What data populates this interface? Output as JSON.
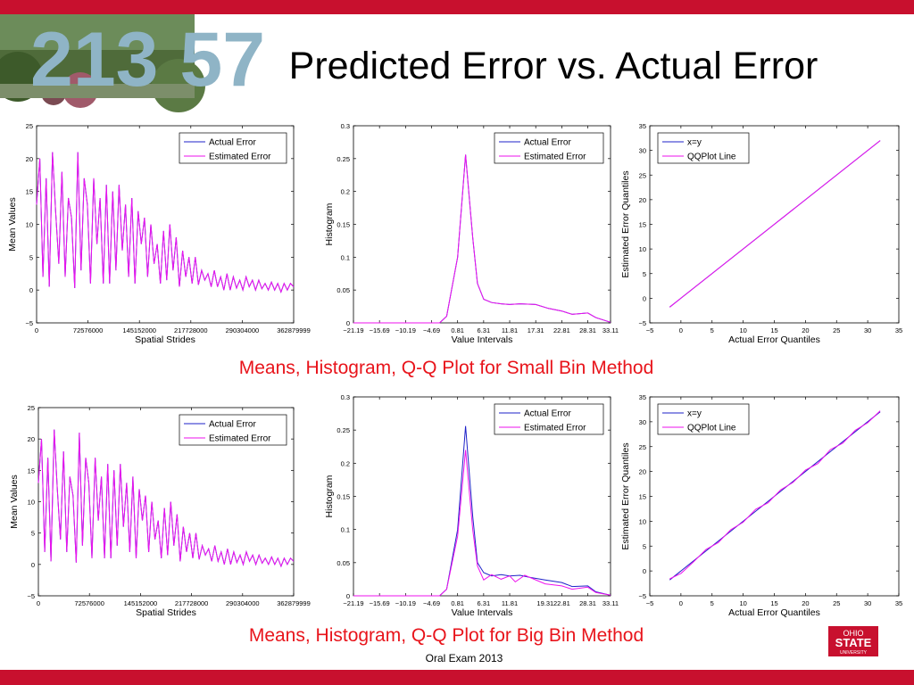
{
  "slide": {
    "title": "Predicted Error vs. Actual Error",
    "caption_small": "Means, Histogram, Q-Q Plot for Small Bin Method",
    "caption_big": "Means, Histogram, Q-Q Plot for Big Bin Method",
    "footer": "Oral Exam 2013",
    "photo_numbers": "213 57",
    "logo_text": [
      "OHIO",
      "STATE",
      "UNIVERSITY"
    ]
  },
  "colors": {
    "bar": "#c8102e",
    "caption": "#e8141b",
    "actual": "#1e22c8",
    "estimated": "#ee12ee"
  },
  "chart_data": [
    {
      "type": "line",
      "panel": "small-means",
      "xlabel": "Spatial Strides",
      "ylabel": "Mean Values",
      "xlim": [
        0,
        362879999
      ],
      "ylim": [
        -5,
        25
      ],
      "xticks": [
        0,
        72576000,
        145152000,
        217728000,
        290304000,
        362879999
      ],
      "xtick_labels": [
        "0",
        "72576000",
        "145152000",
        "217728000",
        "290304000",
        "362879999"
      ],
      "yticks": [
        -5,
        0,
        5,
        10,
        15,
        20,
        25
      ],
      "legend": "top-right",
      "series": [
        {
          "name": "Actual Error",
          "values": [
            13,
            20,
            2,
            17,
            0.5,
            21,
            12,
            4,
            18,
            2,
            14,
            11,
            0.3,
            21,
            3,
            17,
            13,
            1,
            17,
            7,
            14,
            1,
            16,
            1,
            15,
            3,
            16,
            6,
            13,
            2,
            14,
            1,
            12,
            7,
            11,
            2,
            10,
            4,
            7,
            1,
            9,
            1.5,
            10,
            3,
            8,
            0.5,
            6,
            2,
            5,
            1,
            5,
            0.8,
            3,
            1.5,
            2.5,
            0.5,
            3,
            0.5,
            2,
            0,
            2.5,
            0,
            2,
            0.3,
            1.5,
            0,
            2,
            0.5,
            1.5,
            0,
            1.5,
            0.2,
            1,
            0,
            1.2,
            0,
            1,
            -0.3,
            1,
            0,
            1,
            0.5
          ]
        },
        {
          "name": "Estimated Error",
          "values": [
            13,
            20,
            2,
            17,
            0.5,
            21,
            12,
            4,
            18,
            2,
            14,
            11,
            0.3,
            21,
            3,
            17,
            13,
            1,
            17,
            7,
            14,
            1,
            16,
            1,
            15,
            3,
            16,
            6,
            13,
            2,
            14,
            1,
            12,
            7,
            11,
            2,
            10,
            4,
            7,
            1,
            9,
            1.5,
            10,
            3,
            8,
            0.5,
            6,
            2,
            5,
            1,
            5,
            0.8,
            3,
            1.5,
            2.5,
            0.5,
            3,
            0.5,
            2,
            0,
            2.5,
            0,
            2,
            0.3,
            1.5,
            0,
            2,
            0.5,
            1.5,
            0,
            1.5,
            0.2,
            1,
            0,
            1.2,
            0,
            1,
            -0.3,
            1,
            0,
            1,
            0.5
          ]
        }
      ]
    },
    {
      "type": "line",
      "panel": "small-hist",
      "xlabel": "Value Intervals",
      "ylabel": "Histogram",
      "xlim": [
        -21.19,
        33.11
      ],
      "ylim": [
        0,
        0.3
      ],
      "xticks": [
        -21.19,
        -15.69,
        -10.19,
        -4.69,
        0.81,
        6.31,
        11.81,
        17.31,
        22.81,
        28.31,
        33.11
      ],
      "xtick_labels": [
        "−21.19",
        "−15.69",
        "−10.19",
        "−4.69",
        "0.81",
        "6.31",
        "11.81",
        "17.31",
        "22.81",
        "28.31",
        "33.11"
      ],
      "yticks": [
        0,
        0.05,
        0.1,
        0.15,
        0.2,
        0.25,
        0.3
      ],
      "legend": "top-right",
      "series": [
        {
          "name": "Actual Error",
          "x": [
            -21.19,
            -3,
            -1.5,
            0.81,
            2.5,
            4,
            5,
            6.31,
            8,
            10,
            11.81,
            14,
            17.31,
            20,
            22.81,
            25,
            28.31,
            30,
            33.11
          ],
          "values": [
            0,
            0,
            0.01,
            0.1,
            0.256,
            0.13,
            0.06,
            0.036,
            0.031,
            0.029,
            0.028,
            0.029,
            0.028,
            0.022,
            0.018,
            0.013,
            0.015,
            0.008,
            0.001
          ]
        },
        {
          "name": "Estimated Error",
          "x": [
            -21.19,
            -3,
            -1.5,
            0.81,
            2.5,
            4,
            5,
            6.31,
            8,
            10,
            11.81,
            14,
            17.31,
            20,
            22.81,
            25,
            28.31,
            30,
            33.11
          ],
          "values": [
            0,
            0,
            0.01,
            0.1,
            0.256,
            0.13,
            0.06,
            0.036,
            0.031,
            0.029,
            0.028,
            0.029,
            0.028,
            0.022,
            0.018,
            0.013,
            0.015,
            0.008,
            0.001
          ]
        }
      ]
    },
    {
      "type": "line",
      "panel": "small-qq",
      "xlabel": "Actual Error Quantiles",
      "ylabel": "Estimated Error Quantiles",
      "xlim": [
        -5,
        35
      ],
      "ylim": [
        -5,
        35
      ],
      "xticks": [
        -5,
        0,
        5,
        10,
        15,
        20,
        25,
        30,
        35
      ],
      "yticks": [
        -5,
        0,
        5,
        10,
        15,
        20,
        25,
        30,
        35
      ],
      "legend": "top-left",
      "series": [
        {
          "name": "x=y",
          "x": [
            -1.8,
            32
          ],
          "values": [
            -1.8,
            32
          ]
        },
        {
          "name": "QQPlot Line",
          "x": [
            -1.8,
            32
          ],
          "values": [
            -1.8,
            32
          ]
        }
      ]
    },
    {
      "type": "line",
      "panel": "big-means",
      "xlabel": "Spatial Strides",
      "ylabel": "Mean Values",
      "xlim": [
        0,
        362879999
      ],
      "ylim": [
        -5,
        25
      ],
      "xticks": [
        0,
        72576000,
        145152000,
        217728000,
        290304000,
        362879999
      ],
      "xtick_labels": [
        "0",
        "72576000",
        "145152000",
        "217728000",
        "290304000",
        "362879999"
      ],
      "yticks": [
        -5,
        0,
        5,
        10,
        15,
        20,
        25
      ],
      "legend": "top-right",
      "series": [
        {
          "name": "Actual Error",
          "values": [
            13,
            20,
            2,
            17,
            0.5,
            21.5,
            12,
            4,
            18,
            2,
            14,
            11,
            0.3,
            21,
            3,
            17,
            13,
            1,
            17,
            7,
            14,
            1,
            16,
            1,
            15,
            3,
            16,
            6,
            13,
            2,
            14,
            1,
            12,
            7,
            11,
            2,
            10,
            4,
            7,
            1,
            9,
            1.5,
            10,
            3,
            8,
            0.5,
            6,
            2,
            5,
            1,
            5,
            0.8,
            3,
            1.5,
            2.5,
            0.5,
            3,
            0.5,
            2,
            0,
            2.5,
            0,
            2,
            0.3,
            1.5,
            0,
            2,
            0.5,
            1.5,
            0,
            1.5,
            0.2,
            1,
            0,
            1.2,
            0,
            1,
            -0.3,
            1,
            0,
            1,
            0.5
          ]
        },
        {
          "name": "Estimated Error",
          "values": [
            13,
            20,
            2,
            17,
            0.5,
            21.5,
            12,
            4,
            18,
            2,
            14,
            11,
            0.3,
            21,
            3,
            17,
            13,
            1,
            17,
            7,
            14,
            1,
            16,
            1,
            15,
            3,
            16,
            6,
            13,
            2,
            14,
            1,
            12,
            7,
            11,
            2,
            10,
            4,
            7,
            1,
            9,
            1.5,
            10,
            3,
            8,
            0.5,
            6,
            2,
            5,
            1,
            5,
            0.8,
            3,
            1.5,
            2.5,
            0.5,
            3,
            0.5,
            2,
            0,
            2.5,
            0,
            2,
            0.3,
            1.5,
            0,
            2,
            0.5,
            1.5,
            0,
            1.5,
            0.2,
            1,
            0,
            1.2,
            0,
            1,
            -0.3,
            1,
            0,
            1,
            0.5
          ]
        }
      ]
    },
    {
      "type": "line",
      "panel": "big-hist",
      "xlabel": "Value Intervals",
      "ylabel": "Histogram",
      "xlim": [
        -21.19,
        33.11
      ],
      "ylim": [
        0,
        0.3
      ],
      "xticks": [
        -21.19,
        -15.69,
        -10.19,
        -4.69,
        0.81,
        6.31,
        11.81,
        19.31,
        22.81,
        28.31,
        33.11
      ],
      "xtick_labels": [
        "−21.19",
        "−15.69",
        "−10.19",
        "−4.69",
        "0.81",
        "6.31",
        "11.81",
        "19.31",
        "22.81",
        "28.31",
        "33.11"
      ],
      "yticks": [
        0,
        0.05,
        0.1,
        0.15,
        0.2,
        0.25,
        0.3
      ],
      "legend": "top-right",
      "series": [
        {
          "name": "Actual Error",
          "x": [
            -21.19,
            -3,
            -1.5,
            0.81,
            2.5,
            4,
            5,
            6.31,
            8,
            10,
            11.81,
            14,
            16,
            19.31,
            22.81,
            25,
            28.31,
            30,
            33.11
          ],
          "values": [
            0,
            0,
            0.01,
            0.1,
            0.256,
            0.12,
            0.05,
            0.035,
            0.03,
            0.032,
            0.03,
            0.031,
            0.028,
            0.024,
            0.02,
            0.014,
            0.015,
            0.006,
            0.001
          ]
        },
        {
          "name": "Estimated Error",
          "x": [
            -21.19,
            -3,
            -1.5,
            0.81,
            2.5,
            4,
            5,
            6.31,
            8,
            10,
            11.81,
            13,
            15,
            19.31,
            22.81,
            25,
            28.31,
            30,
            33.11
          ],
          "values": [
            0,
            0,
            0.01,
            0.09,
            0.22,
            0.1,
            0.045,
            0.024,
            0.032,
            0.025,
            0.03,
            0.021,
            0.031,
            0.018,
            0.015,
            0.01,
            0.013,
            0.005,
            0.001
          ]
        }
      ]
    },
    {
      "type": "line",
      "panel": "big-qq",
      "xlabel": "Actual Error Quantiles",
      "ylabel": "Estimated Error Quantiles",
      "xlim": [
        -5,
        35
      ],
      "ylim": [
        -5,
        35
      ],
      "xticks": [
        -5,
        0,
        5,
        10,
        15,
        20,
        25,
        30,
        35
      ],
      "yticks": [
        -5,
        0,
        5,
        10,
        15,
        20,
        25,
        30,
        35
      ],
      "legend": "top-left",
      "series": [
        {
          "name": "x=y",
          "x": [
            -1.8,
            32
          ],
          "values": [
            -1.8,
            32
          ]
        },
        {
          "name": "QQPlot Line",
          "x": [
            -1.8,
            0,
            2,
            4,
            6,
            8,
            10,
            12,
            14,
            16,
            18,
            20,
            22,
            24,
            26,
            28,
            30,
            32
          ],
          "values": [
            -1.6,
            -0.5,
            1.8,
            4.3,
            5.7,
            8.3,
            9.8,
            12.4,
            13.7,
            16.3,
            17.8,
            20.3,
            21.6,
            24.4,
            25.7,
            28.3,
            29.8,
            32.2
          ]
        }
      ]
    }
  ]
}
